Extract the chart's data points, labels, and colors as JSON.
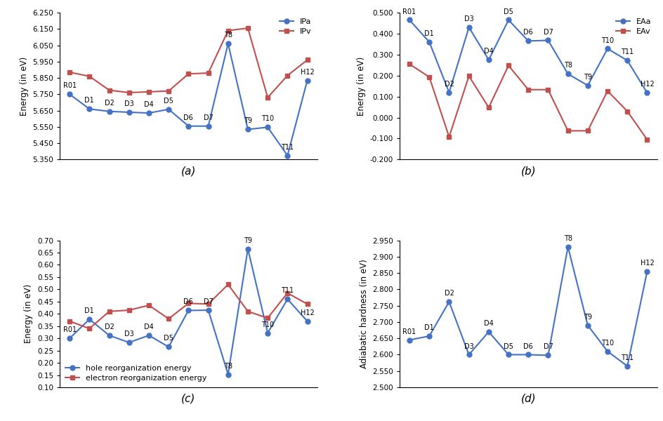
{
  "labels": [
    "R01",
    "D1",
    "D2",
    "D3",
    "D4",
    "D5",
    "D6",
    "D7",
    "T8",
    "T9",
    "T10",
    "T11",
    "H12"
  ],
  "IPa": [
    5.75,
    5.66,
    5.645,
    5.64,
    5.635,
    5.658,
    5.555,
    5.555,
    6.06,
    5.535,
    5.548,
    5.375,
    5.835
  ],
  "IPv": [
    5.885,
    5.86,
    5.775,
    5.76,
    5.765,
    5.77,
    5.875,
    5.88,
    6.14,
    6.155,
    5.73,
    5.865,
    5.96
  ],
  "EAa": [
    0.465,
    0.36,
    0.12,
    0.43,
    0.275,
    0.465,
    0.365,
    0.368,
    0.208,
    0.153,
    0.328,
    0.272,
    0.118
  ],
  "EAv": [
    0.255,
    0.193,
    -0.092,
    0.198,
    0.048,
    0.248,
    0.133,
    0.133,
    -0.063,
    -0.063,
    0.127,
    0.03,
    -0.105
  ],
  "hole_reorg": [
    0.3,
    0.378,
    0.312,
    0.283,
    0.312,
    0.265,
    0.414,
    0.415,
    0.153,
    0.665,
    0.322,
    0.46,
    0.37
  ],
  "elec_reorg": [
    0.37,
    0.34,
    0.41,
    0.415,
    0.435,
    0.38,
    0.443,
    0.44,
    0.52,
    0.41,
    0.383,
    0.485,
    0.44
  ],
  "hardness": [
    2.645,
    2.657,
    2.762,
    2.6,
    2.67,
    2.6,
    2.6,
    2.598,
    2.93,
    2.69,
    2.61,
    2.565,
    2.855
  ],
  "color_blue": "#4472C4",
  "color_red": "#C0504D",
  "panel_labels": [
    "(a)",
    "(b)",
    "(c)",
    "(d)"
  ],
  "ylabel_a": "Energy (in eV)",
  "ylabel_b": "Energy (in eV)",
  "ylabel_c": "Energy (in eV)",
  "ylabel_d": "Adiabatic hardness (in eV)",
  "ylim_a": [
    5.35,
    6.25
  ],
  "ylim_b": [
    -0.2,
    0.5
  ],
  "ylim_c": [
    0.1,
    0.7
  ],
  "ylim_d": [
    2.5,
    2.95
  ],
  "yticks_a": [
    5.35,
    5.45,
    5.55,
    5.65,
    5.75,
    5.85,
    5.95,
    6.05,
    6.15,
    6.25
  ],
  "yticks_b": [
    -0.2,
    -0.1,
    0.0,
    0.1,
    0.2,
    0.3,
    0.4,
    0.5
  ],
  "yticks_c": [
    0.1,
    0.15,
    0.2,
    0.25,
    0.3,
    0.35,
    0.4,
    0.45,
    0.5,
    0.55,
    0.6,
    0.65,
    0.7
  ],
  "yticks_d": [
    2.5,
    2.55,
    2.6,
    2.65,
    2.7,
    2.75,
    2.8,
    2.85,
    2.9,
    2.95
  ],
  "legend_a": [
    "IPa",
    "IPv"
  ],
  "legend_b": [
    "EAa",
    "EAv"
  ],
  "legend_c": [
    "hole reorganization energy",
    "electron reorganization energy"
  ]
}
